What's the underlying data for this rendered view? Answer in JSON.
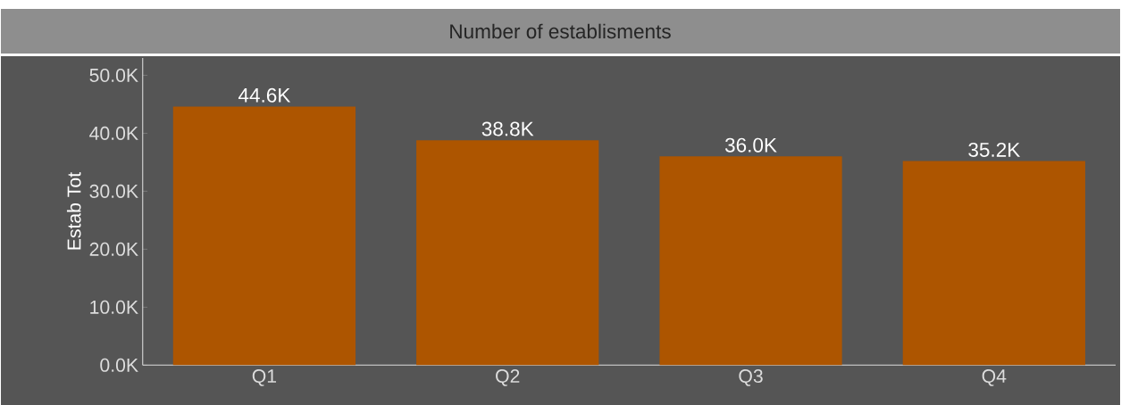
{
  "chart_data": {
    "type": "bar",
    "title": "Number of establisments",
    "ylabel": "Estab Tot",
    "categories": [
      "Q1",
      "Q2",
      "Q3",
      "Q4"
    ],
    "values": [
      44600,
      38800,
      36000,
      35200
    ],
    "value_labels": [
      "44.6K",
      "38.8K",
      "36.0K",
      "35.2K"
    ],
    "color": "#ad5500",
    "ylim": [
      0,
      53000
    ],
    "yticks": [
      {
        "value": 0,
        "label": "0.0K"
      },
      {
        "value": 10000,
        "label": "10.0K"
      },
      {
        "value": 20000,
        "label": "20.0K"
      },
      {
        "value": 30000,
        "label": "30.0K"
      },
      {
        "value": 40000,
        "label": "40.0K"
      },
      {
        "value": 50000,
        "label": "50.0K"
      }
    ]
  }
}
